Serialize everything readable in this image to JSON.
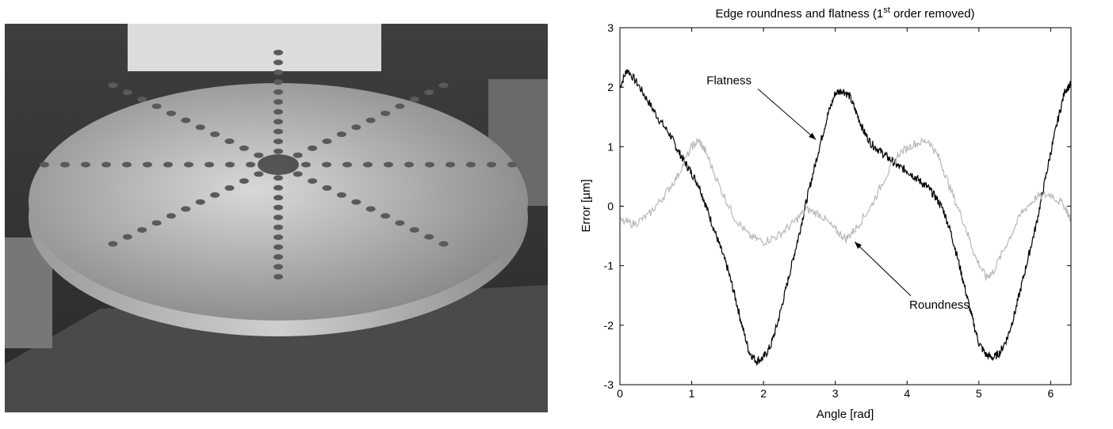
{
  "photo": {
    "icon": "turntable-disc-photo"
  },
  "chart_data": {
    "type": "line",
    "title": {
      "pre": "Edge roundness and flatness (1",
      "sup": "st",
      "post": " order removed)"
    },
    "xlabel": "Angle [rad]",
    "ylabel": "Error [µm]",
    "xlim": [
      0,
      6.283
    ],
    "ylim": [
      -3,
      3
    ],
    "xticks": [
      0,
      1,
      2,
      3,
      4,
      5,
      6
    ],
    "yticks": [
      -3,
      -2,
      -1,
      0,
      1,
      2,
      3
    ],
    "grid": false,
    "series": [
      {
        "name": "Flatness",
        "color": "#000000",
        "points": [
          [
            0,
            2.0
          ],
          [
            0.1,
            2.3
          ],
          [
            0.25,
            2.05
          ],
          [
            0.4,
            1.75
          ],
          [
            0.55,
            1.45
          ],
          [
            0.7,
            1.2
          ],
          [
            0.8,
            0.95
          ],
          [
            0.9,
            0.75
          ],
          [
            1.0,
            0.55
          ],
          [
            1.1,
            0.35
          ],
          [
            1.2,
            0.0
          ],
          [
            1.3,
            -0.35
          ],
          [
            1.4,
            -0.7
          ],
          [
            1.5,
            -1.05
          ],
          [
            1.6,
            -1.5
          ],
          [
            1.7,
            -2.0
          ],
          [
            1.8,
            -2.45
          ],
          [
            1.9,
            -2.6
          ],
          [
            2.0,
            -2.55
          ],
          [
            2.1,
            -2.35
          ],
          [
            2.2,
            -1.95
          ],
          [
            2.3,
            -1.45
          ],
          [
            2.4,
            -0.95
          ],
          [
            2.5,
            -0.45
          ],
          [
            2.6,
            0.1
          ],
          [
            2.7,
            0.6
          ],
          [
            2.8,
            1.1
          ],
          [
            2.9,
            1.55
          ],
          [
            3.0,
            1.9
          ],
          [
            3.1,
            1.95
          ],
          [
            3.2,
            1.85
          ],
          [
            3.3,
            1.55
          ],
          [
            3.4,
            1.25
          ],
          [
            3.5,
            1.05
          ],
          [
            3.6,
            0.95
          ],
          [
            3.7,
            0.85
          ],
          [
            3.8,
            0.75
          ],
          [
            3.9,
            0.65
          ],
          [
            4.0,
            0.6
          ],
          [
            4.1,
            0.5
          ],
          [
            4.2,
            0.4
          ],
          [
            4.3,
            0.3
          ],
          [
            4.4,
            0.15
          ],
          [
            4.5,
            -0.05
          ],
          [
            4.6,
            -0.4
          ],
          [
            4.7,
            -0.85
          ],
          [
            4.8,
            -1.35
          ],
          [
            4.9,
            -1.85
          ],
          [
            5.0,
            -2.3
          ],
          [
            5.1,
            -2.5
          ],
          [
            5.2,
            -2.55
          ],
          [
            5.3,
            -2.45
          ],
          [
            5.4,
            -2.2
          ],
          [
            5.5,
            -1.8
          ],
          [
            5.6,
            -1.3
          ],
          [
            5.7,
            -0.8
          ],
          [
            5.8,
            -0.3
          ],
          [
            5.9,
            0.3
          ],
          [
            6.0,
            0.9
          ],
          [
            6.1,
            1.45
          ],
          [
            6.2,
            1.95
          ],
          [
            6.283,
            2.05
          ]
        ]
      },
      {
        "name": "Roundness",
        "color": "#b8b8b8",
        "points": [
          [
            0,
            -0.25
          ],
          [
            0.2,
            -0.3
          ],
          [
            0.4,
            -0.15
          ],
          [
            0.6,
            0.15
          ],
          [
            0.8,
            0.5
          ],
          [
            1.0,
            1.0
          ],
          [
            1.1,
            1.1
          ],
          [
            1.2,
            0.9
          ],
          [
            1.4,
            0.3
          ],
          [
            1.6,
            -0.2
          ],
          [
            1.8,
            -0.5
          ],
          [
            2.0,
            -0.6
          ],
          [
            2.2,
            -0.5
          ],
          [
            2.4,
            -0.3
          ],
          [
            2.6,
            -0.05
          ],
          [
            2.8,
            -0.15
          ],
          [
            3.0,
            -0.4
          ],
          [
            3.15,
            -0.55
          ],
          [
            3.3,
            -0.35
          ],
          [
            3.5,
            0.0
          ],
          [
            3.7,
            0.5
          ],
          [
            3.9,
            0.9
          ],
          [
            4.1,
            1.05
          ],
          [
            4.3,
            1.1
          ],
          [
            4.45,
            0.8
          ],
          [
            4.6,
            0.3
          ],
          [
            4.8,
            -0.3
          ],
          [
            4.95,
            -0.85
          ],
          [
            5.1,
            -1.2
          ],
          [
            5.2,
            -1.1
          ],
          [
            5.4,
            -0.6
          ],
          [
            5.6,
            -0.1
          ],
          [
            5.8,
            0.15
          ],
          [
            6.0,
            0.2
          ],
          [
            6.2,
            0.0
          ],
          [
            6.283,
            -0.25
          ]
        ]
      }
    ],
    "annotations": [
      {
        "text": "Flatness",
        "tx": 1.52,
        "ty": 2.05,
        "ax": 2.73,
        "ay": 1.12
      },
      {
        "text": "Roundness",
        "tx": 4.45,
        "ty": -1.72,
        "ax": 3.27,
        "ay": -0.6
      }
    ]
  }
}
